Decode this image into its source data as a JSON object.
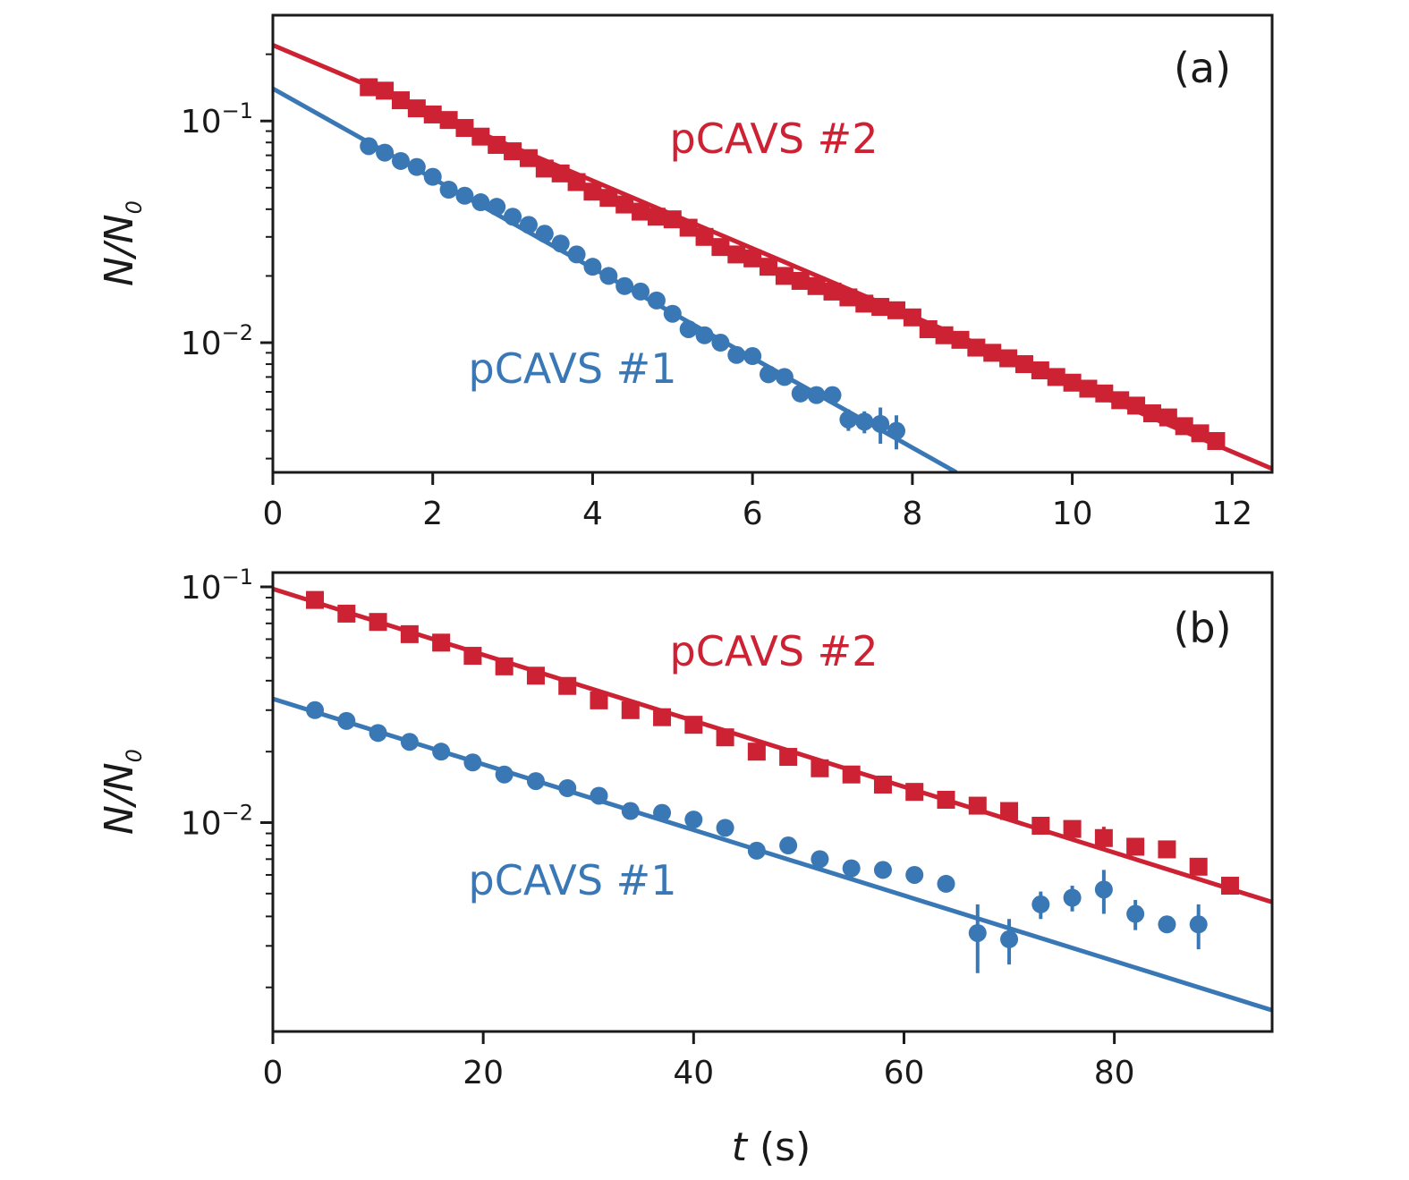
{
  "colors": {
    "series1": "#3a78b5",
    "series2": "#cc2233",
    "axis": "#1a1a1a"
  },
  "x_axis_title": {
    "var": "t",
    "unit": " (s)"
  },
  "y_axis_title": {
    "main": "N/N",
    "sub": "0"
  },
  "chart_data": [
    {
      "type": "scatter",
      "panel_label": "(a)",
      "ylog": true,
      "xlim": [
        0,
        12.5
      ],
      "ylim": [
        0.0026,
        0.3
      ],
      "xticks": [
        0,
        2,
        4,
        6,
        8,
        10,
        12
      ],
      "yticks": [
        {
          "value": 0.1,
          "base": "10",
          "exp": "−1"
        },
        {
          "value": 0.01,
          "base": "10",
          "exp": "−2"
        }
      ],
      "series": [
        {
          "name": "pCAVS #1",
          "marker": "circle",
          "x": [
            1.2,
            1.4,
            1.6,
            1.8,
            2.0,
            2.2,
            2.4,
            2.6,
            2.8,
            3.0,
            3.2,
            3.4,
            3.6,
            3.8,
            4.0,
            4.2,
            4.4,
            4.6,
            4.8,
            5.0,
            5.2,
            5.4,
            5.6,
            5.8,
            6.0,
            6.2,
            6.4,
            6.6,
            6.8,
            7.0,
            7.2,
            7.4,
            7.6,
            7.8
          ],
          "y": [
            0.077,
            0.072,
            0.066,
            0.062,
            0.056,
            0.049,
            0.046,
            0.043,
            0.041,
            0.037,
            0.034,
            0.031,
            0.028,
            0.025,
            0.022,
            0.02,
            0.018,
            0.017,
            0.0155,
            0.0135,
            0.0115,
            0.0108,
            0.01,
            0.0088,
            0.0087,
            0.0072,
            0.007,
            0.0059,
            0.0058,
            0.0058,
            0.0045,
            0.0044,
            0.0043,
            0.004
          ],
          "err_hi": [
            0,
            0,
            0,
            0,
            0,
            0,
            0,
            0,
            0,
            0,
            0,
            0,
            0,
            0,
            0,
            0,
            0,
            0,
            0,
            0,
            0,
            0,
            0,
            0,
            0,
            0,
            0,
            0,
            0,
            0,
            0.0005,
            0.0005,
            0.0008,
            0.0007
          ],
          "err_lo": [
            0,
            0,
            0,
            0,
            0,
            0,
            0,
            0,
            0,
            0,
            0,
            0,
            0,
            0,
            0,
            0,
            0,
            0,
            0,
            0,
            0,
            0,
            0,
            0,
            0,
            0,
            0,
            0,
            0,
            0,
            0.0005,
            0.0005,
            0.0008,
            0.0007
          ],
          "fit": {
            "x0": 0,
            "y0": 0.14,
            "x1": 8.55,
            "y1": 0.0026
          }
        },
        {
          "name": "pCAVS #2",
          "marker": "square",
          "x": [
            1.2,
            1.4,
            1.6,
            1.8,
            2.0,
            2.2,
            2.4,
            2.6,
            2.8,
            3.0,
            3.2,
            3.4,
            3.6,
            3.8,
            4.0,
            4.2,
            4.4,
            4.6,
            4.8,
            5.0,
            5.2,
            5.4,
            5.6,
            5.8,
            6.0,
            6.2,
            6.4,
            6.6,
            6.8,
            7.0,
            7.2,
            7.4,
            7.6,
            7.8,
            8.0,
            8.2,
            8.4,
            8.6,
            8.8,
            9.0,
            9.2,
            9.4,
            9.6,
            9.8,
            10.0,
            10.2,
            10.4,
            10.6,
            10.8,
            11.0,
            11.2,
            11.4,
            11.6,
            11.8
          ],
          "y": [
            0.142,
            0.137,
            0.124,
            0.114,
            0.107,
            0.101,
            0.093,
            0.085,
            0.078,
            0.073,
            0.068,
            0.061,
            0.058,
            0.053,
            0.048,
            0.045,
            0.042,
            0.039,
            0.037,
            0.036,
            0.033,
            0.03,
            0.027,
            0.025,
            0.024,
            0.022,
            0.02,
            0.019,
            0.018,
            0.017,
            0.016,
            0.015,
            0.0145,
            0.014,
            0.013,
            0.0115,
            0.0108,
            0.0103,
            0.0095,
            0.009,
            0.0085,
            0.008,
            0.0075,
            0.007,
            0.0066,
            0.0062,
            0.0059,
            0.0055,
            0.0052,
            0.0048,
            0.0046,
            0.0042,
            0.0039,
            0.0036
          ],
          "fit": {
            "x0": 0,
            "y0": 0.22,
            "x1": 12.5,
            "y1": 0.0027
          }
        }
      ]
    },
    {
      "type": "scatter",
      "panel_label": "(b)",
      "ylog": true,
      "xlim": [
        0,
        95
      ],
      "ylim": [
        0.0013,
        0.115
      ],
      "xticks": [
        0,
        20,
        40,
        60,
        80
      ],
      "yticks": [
        {
          "value": 0.1,
          "base": "10",
          "exp": "−1"
        },
        {
          "value": 0.01,
          "base": "10",
          "exp": "−2"
        }
      ],
      "series": [
        {
          "name": "pCAVS #1",
          "marker": "circle",
          "x": [
            4,
            7,
            10,
            13,
            16,
            19,
            22,
            25,
            28,
            31,
            34,
            37,
            40,
            43,
            46,
            49,
            52,
            55,
            58,
            61,
            64,
            67,
            70,
            73,
            76,
            79,
            82,
            85,
            88
          ],
          "y": [
            0.03,
            0.027,
            0.024,
            0.022,
            0.02,
            0.018,
            0.016,
            0.015,
            0.014,
            0.013,
            0.0112,
            0.011,
            0.0103,
            0.0095,
            0.0076,
            0.008,
            0.007,
            0.0064,
            0.0063,
            0.006,
            0.0055,
            0.0034,
            0.0032,
            0.0045,
            0.0048,
            0.0052,
            0.0041,
            0.0037,
            0.0037
          ],
          "err_hi": [
            0,
            0,
            0,
            0,
            0,
            0,
            0,
            0,
            0,
            0,
            0,
            0,
            0,
            0,
            0.0004,
            0,
            0,
            0,
            0,
            0.0004,
            0.0003,
            0.0011,
            0.0007,
            0.0006,
            0.0006,
            0.0011,
            0.0006,
            0.0003,
            0.0008
          ],
          "err_lo": [
            0,
            0,
            0,
            0,
            0,
            0,
            0,
            0,
            0,
            0,
            0,
            0,
            0,
            0,
            0.0004,
            0,
            0,
            0,
            0,
            0.0004,
            0.0003,
            0.0011,
            0.0007,
            0.0006,
            0.0006,
            0.0011,
            0.0006,
            0.0003,
            0.0008
          ],
          "fit": {
            "x0": 0,
            "y0": 0.0335,
            "x1": 95,
            "y1": 0.0016
          }
        },
        {
          "name": "pCAVS #2",
          "marker": "square",
          "x": [
            4,
            7,
            10,
            13,
            16,
            19,
            22,
            25,
            28,
            31,
            34,
            37,
            40,
            43,
            46,
            49,
            52,
            55,
            58,
            61,
            64,
            67,
            70,
            73,
            76,
            79,
            82,
            85,
            88,
            91
          ],
          "y": [
            0.088,
            0.077,
            0.071,
            0.063,
            0.058,
            0.051,
            0.046,
            0.042,
            0.038,
            0.033,
            0.03,
            0.028,
            0.026,
            0.023,
            0.02,
            0.019,
            0.017,
            0.016,
            0.0145,
            0.0135,
            0.0125,
            0.0118,
            0.0112,
            0.0097,
            0.0094,
            0.0086,
            0.0079,
            0.0077,
            0.0065,
            0.0054
          ],
          "err_hi": [
            0,
            0,
            0,
            0,
            0,
            0,
            0,
            0,
            0,
            0,
            0,
            0,
            0,
            0,
            0,
            0,
            0,
            0,
            0,
            0,
            0,
            0.0007,
            0.0006,
            0.0008,
            0.0006,
            0.001,
            0.0005,
            0.0006,
            0.0005,
            0.0003
          ],
          "err_lo": [
            0,
            0,
            0,
            0,
            0,
            0,
            0,
            0,
            0,
            0,
            0,
            0,
            0,
            0,
            0,
            0,
            0,
            0,
            0,
            0,
            0,
            0.0007,
            0.0006,
            0.0008,
            0.0006,
            0.001,
            0.0005,
            0.0006,
            0.0005,
            0.0003
          ],
          "fit": {
            "x0": 0,
            "y0": 0.098,
            "x1": 95,
            "y1": 0.0046
          }
        }
      ]
    }
  ]
}
